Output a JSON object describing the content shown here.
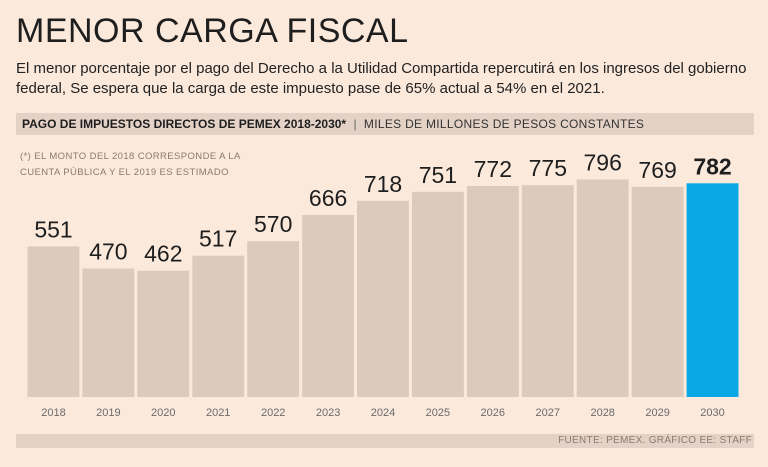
{
  "title": "MENOR CARGA FISCAL",
  "subtitle": "El menor porcentaje por el pago del Derecho a la Utilidad Compartida repercutirá en los ingresos  del gobierno federal, Se espera que la carga de este impuesto pase de 65% actual a 54% en el 2021.",
  "band": {
    "label": "PAGO DE IMPUESTOS DIRECTOS DE PEMEX 2018-2030*",
    "separator": "|",
    "units": "MILES DE MILLONES DE PESOS CONSTANTES"
  },
  "note": "(*) EL MONTO DEL 2018 CORRESPONDE A LA CUENTA PÚBLICA Y EL 2019 ES ESTIMADO",
  "source": "FUENTE: PEMEX. GRÁFICO EE: STAFF",
  "colors": {
    "bar": "#dccbbd",
    "highlight": "#0aa9e6",
    "background": "#fbe9dc"
  },
  "chart_data": {
    "type": "bar",
    "title": "PAGO DE IMPUESTOS DIRECTOS DE PEMEX 2018-2030*",
    "ylabel": "MILES DE MILLONES DE PESOS CONSTANTES",
    "xlabel": "",
    "categories": [
      "2018",
      "2019",
      "2020",
      "2021",
      "2022",
      "2023",
      "2024",
      "2025",
      "2026",
      "2027",
      "2028",
      "2029",
      "2030"
    ],
    "values": [
      551,
      470,
      462,
      517,
      570,
      666,
      718,
      751,
      772,
      775,
      796,
      769,
      782
    ],
    "highlight_index": 12,
    "ylim": [
      0,
      796
    ],
    "grid": false
  }
}
